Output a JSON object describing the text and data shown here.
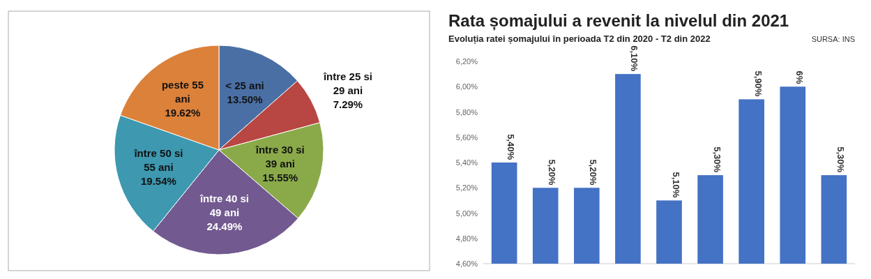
{
  "chart_data": [
    {
      "type": "pie",
      "categories": [
        "< 25 ani",
        "între 25 si 29 ani",
        "între 30 si 39 ani",
        "între 40 si 49 ani",
        "între 50 si 55 ani",
        "peste 55 ani"
      ],
      "values": [
        13.5,
        7.29,
        15.55,
        24.49,
        19.54,
        19.62
      ],
      "value_labels": [
        "13.50%",
        "7.29%",
        "15.55%",
        "24.49%",
        "19.54%",
        "19.62%"
      ],
      "colors": [
        "#4a6fa5",
        "#b84643",
        "#8aaa4a",
        "#725990",
        "#3d98b0",
        "#dc813a"
      ]
    },
    {
      "type": "bar",
      "title": "Rata șomajului a revenit la nivelul din 2021",
      "annotations": [
        "SURSA: INS",
        "Evoluția ratei șomajului în perioada T2 din 2020 - T2 din 2022"
      ],
      "categories": [
        null,
        null,
        null,
        null,
        null,
        null,
        null,
        null,
        null
      ],
      "values": [
        5.4,
        5.2,
        5.2,
        6.1,
        5.1,
        5.3,
        5.9,
        6.0,
        5.3
      ],
      "value_labels": [
        "5,40%",
        "5,20%",
        "5,20%",
        "6,10%",
        "5,10%",
        "5,30%",
        "5,90%",
        "6%",
        "5,30%"
      ],
      "color": "#4472c4",
      "ylim": [
        4.6,
        6.2
      ],
      "yticks": [
        {
          "value": 4.6,
          "label": "4,60%"
        },
        {
          "value": 4.8,
          "label": "4,80%"
        },
        {
          "value": 5.0,
          "label": "5,00%"
        },
        {
          "value": 5.2,
          "label": "5,20%"
        },
        {
          "value": 5.4,
          "label": "5,40%"
        },
        {
          "value": 5.6,
          "label": "5,60%"
        },
        {
          "value": 5.8,
          "label": "5,80%"
        },
        {
          "value": 6.0,
          "label": "6,00%"
        },
        {
          "value": 6.2,
          "label": "6,20%"
        }
      ],
      "grid": false
    }
  ]
}
